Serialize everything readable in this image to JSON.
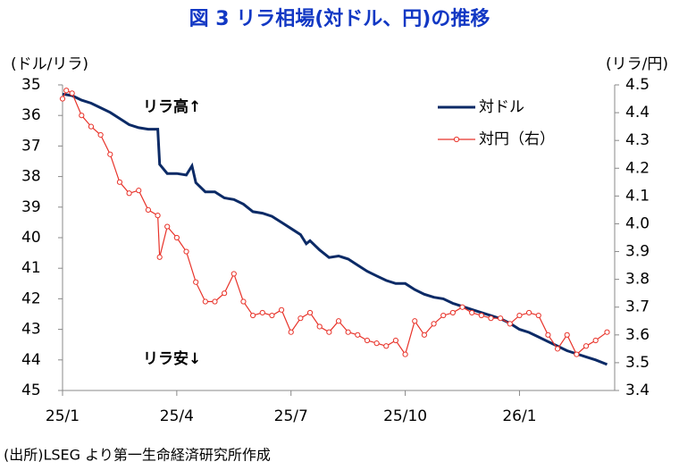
{
  "chart_data": {
    "type": "line",
    "title": "図 3 リラ相場(対ドル、円)の推移",
    "ylabel": "(ドル/リラ)",
    "y2label": "(リラ/円)",
    "annotations": [
      "リラ高↑",
      "リラ安↓"
    ],
    "source": "(出所)LSEG より第一生命経済研究所作成",
    "xlim": [
      0,
      14.5
    ],
    "xticks": [
      {
        "value": 0,
        "label": "25/1"
      },
      {
        "value": 3,
        "label": "25/4"
      },
      {
        "value": 6,
        "label": "25/7"
      },
      {
        "value": 9,
        "label": "25/10"
      },
      {
        "value": 12,
        "label": "26/1"
      }
    ],
    "ylim": [
      45,
      35
    ],
    "yticks": [
      35,
      36,
      37,
      38,
      39,
      40,
      41,
      42,
      43,
      44,
      45
    ],
    "y2lim": [
      3.4,
      4.5
    ],
    "y2ticks": [
      3.4,
      3.5,
      3.6,
      3.7,
      3.8,
      3.9,
      {
        "value": 4,
        "label": "4.0"
      },
      4.1,
      4.2,
      4.3,
      4.4,
      4.5
    ],
    "legend": "upper right",
    "series": [
      {
        "name": "対ドル",
        "color": "#0b2a66",
        "x": [
          0,
          0.25,
          0.5,
          0.75,
          1,
          1.25,
          1.5,
          1.75,
          2,
          2.25,
          2.5,
          2.55,
          2.75,
          3,
          3.25,
          3.4,
          3.5,
          3.75,
          4,
          4.25,
          4.5,
          4.75,
          5,
          5.25,
          5.5,
          5.75,
          6,
          6.25,
          6.4,
          6.5,
          6.75,
          7,
          7.25,
          7.5,
          7.75,
          8,
          8.25,
          8.5,
          8.75,
          9,
          9.25,
          9.5,
          9.75,
          10,
          10.25,
          10.5,
          10.75,
          11,
          11.25,
          11.5,
          11.75,
          12,
          12.25,
          12.5,
          12.75,
          13,
          13.25,
          13.5,
          13.75,
          14,
          14.3
        ],
        "values": [
          35.3,
          35.35,
          35.5,
          35.6,
          35.75,
          35.9,
          36.1,
          36.3,
          36.4,
          36.45,
          36.45,
          37.6,
          37.9,
          37.9,
          37.95,
          37.65,
          38.2,
          38.5,
          38.5,
          38.7,
          38.75,
          38.9,
          39.15,
          39.2,
          39.3,
          39.5,
          39.7,
          39.9,
          40.2,
          40.1,
          40.4,
          40.65,
          40.6,
          40.7,
          40.9,
          41.1,
          41.25,
          41.4,
          41.5,
          41.5,
          41.7,
          41.85,
          41.95,
          42.0,
          42.15,
          42.25,
          42.35,
          42.45,
          42.55,
          42.65,
          42.8,
          43.0,
          43.1,
          43.25,
          43.4,
          43.55,
          43.7,
          43.8,
          43.9,
          44.0,
          44.15
        ]
      },
      {
        "name": "対円（右）",
        "color": "#e8332a",
        "axis": "y2",
        "x": [
          0,
          0.1,
          0.25,
          0.5,
          0.75,
          1,
          1.25,
          1.5,
          1.75,
          2,
          2.25,
          2.5,
          2.55,
          2.75,
          3,
          3.25,
          3.5,
          3.75,
          4,
          4.25,
          4.5,
          4.75,
          5,
          5.25,
          5.5,
          5.75,
          6,
          6.25,
          6.5,
          6.75,
          7,
          7.25,
          7.5,
          7.75,
          8,
          8.25,
          8.5,
          8.75,
          9,
          9.25,
          9.5,
          9.75,
          10,
          10.25,
          10.5,
          10.75,
          11,
          11.25,
          11.5,
          11.75,
          12,
          12.25,
          12.5,
          12.75,
          13,
          13.25,
          13.5,
          13.75,
          14,
          14.3
        ],
        "values": [
          4.45,
          4.48,
          4.47,
          4.39,
          4.35,
          4.32,
          4.25,
          4.15,
          4.11,
          4.12,
          4.05,
          4.03,
          3.88,
          3.99,
          3.95,
          3.9,
          3.79,
          3.72,
          3.72,
          3.75,
          3.82,
          3.72,
          3.67,
          3.68,
          3.67,
          3.69,
          3.61,
          3.66,
          3.68,
          3.63,
          3.61,
          3.65,
          3.61,
          3.6,
          3.58,
          3.57,
          3.56,
          3.58,
          3.53,
          3.65,
          3.6,
          3.64,
          3.67,
          3.68,
          3.7,
          3.68,
          3.67,
          3.66,
          3.66,
          3.64,
          3.67,
          3.68,
          3.67,
          3.6,
          3.55,
          3.6,
          3.53,
          3.56,
          3.58,
          3.61
        ]
      }
    ]
  }
}
